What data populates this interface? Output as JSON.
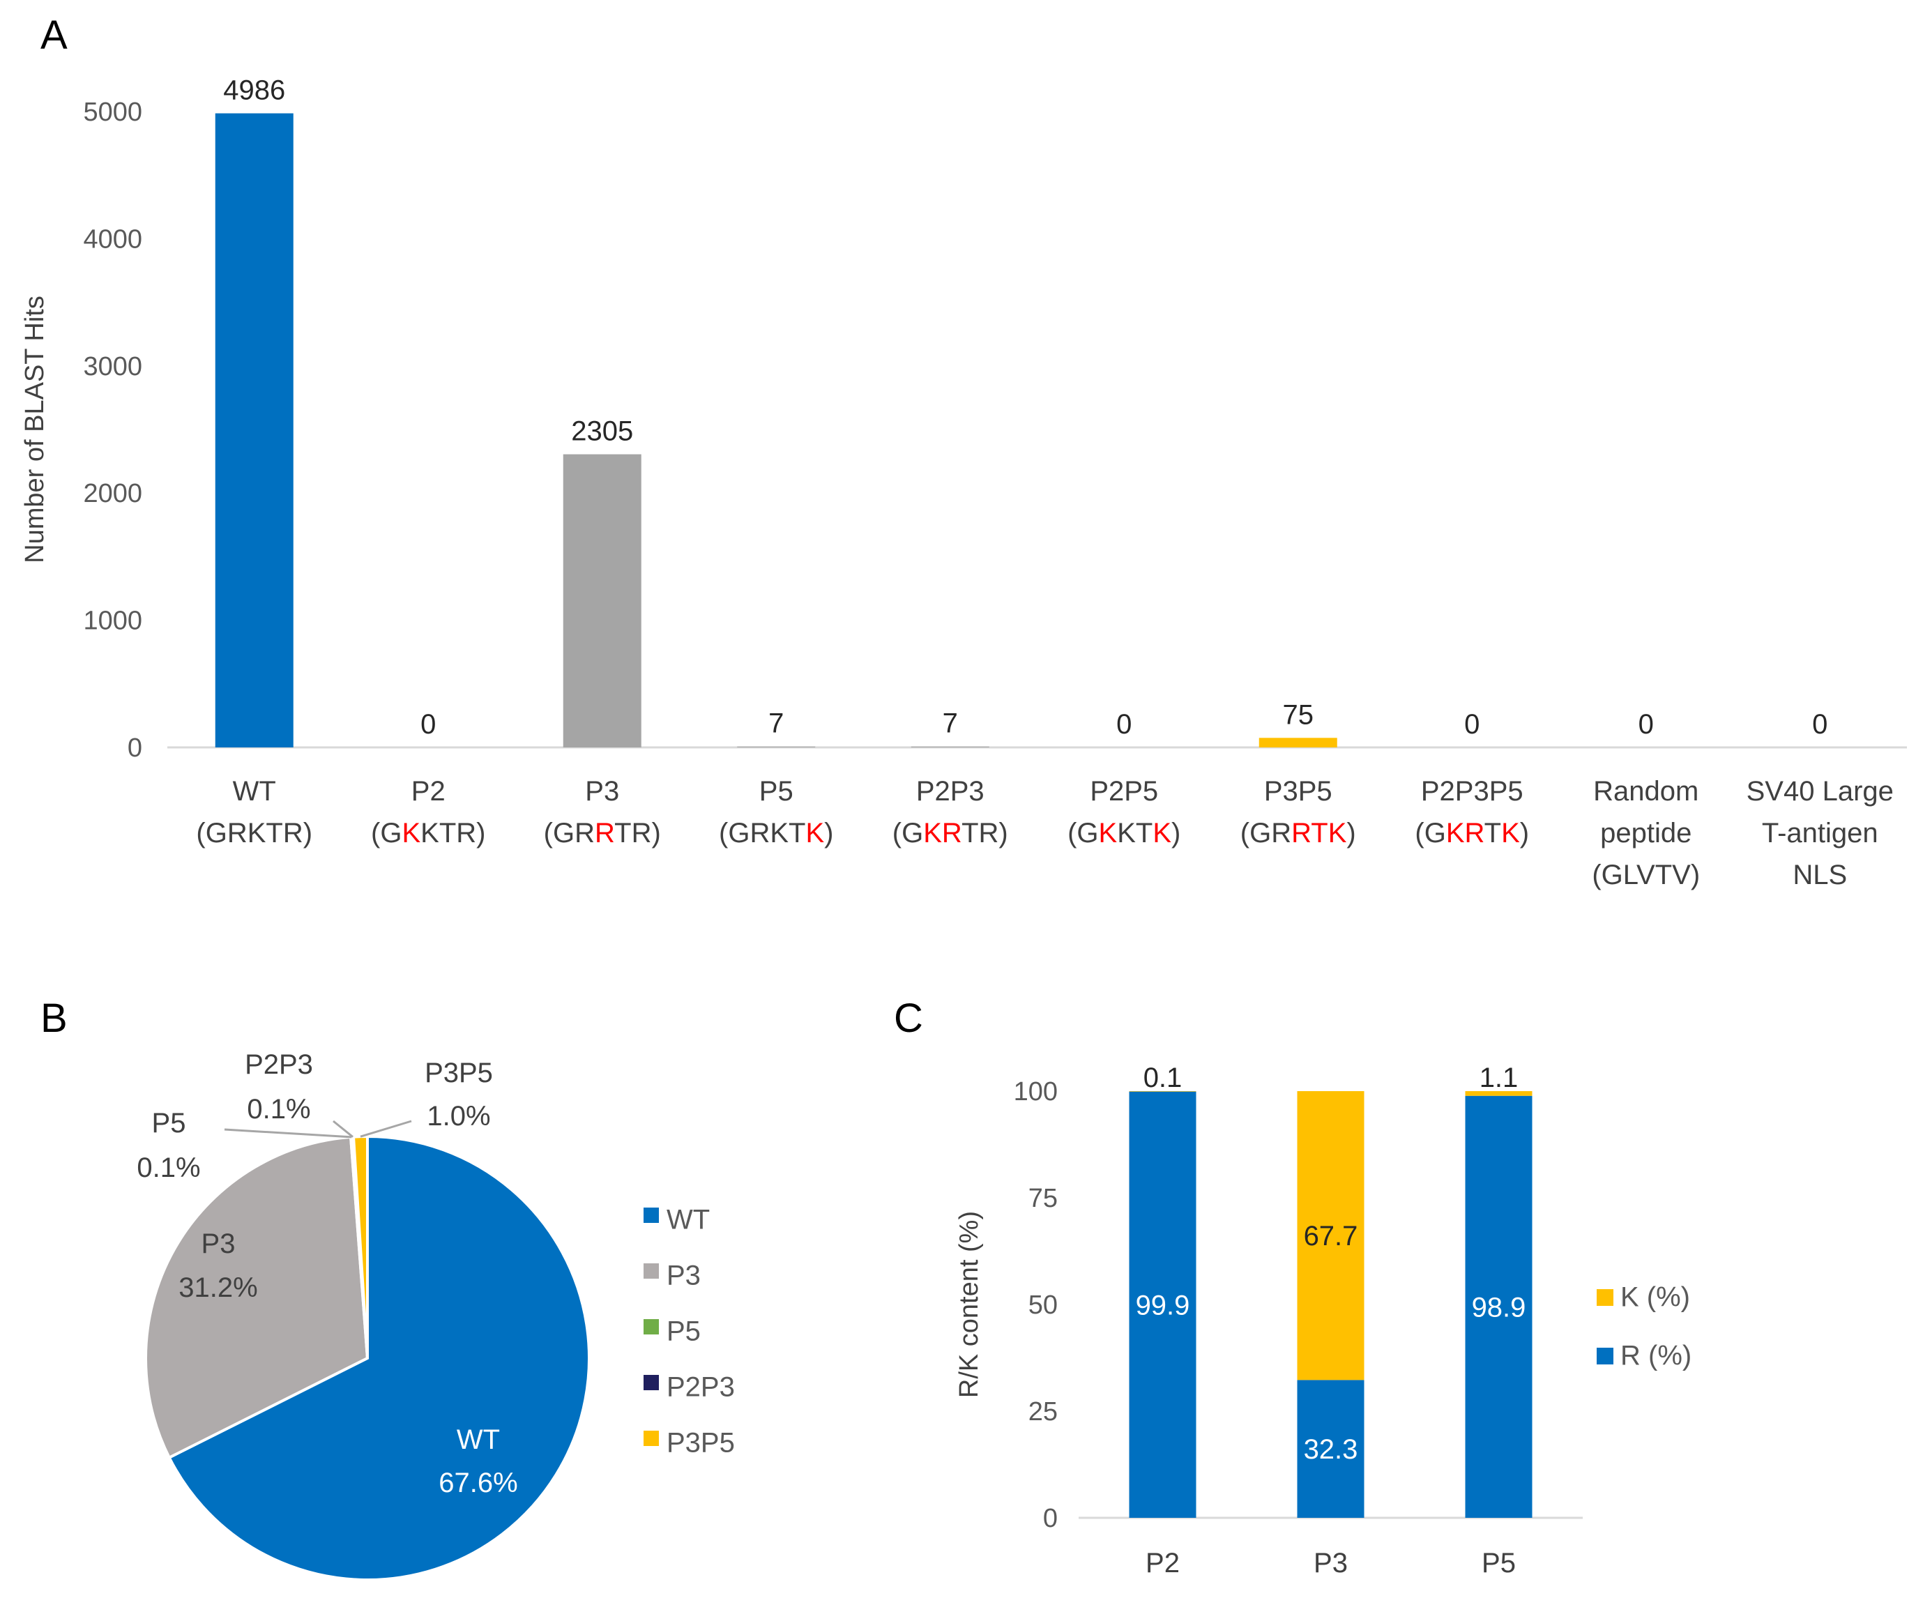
{
  "panels": {
    "a": "A",
    "b": "B",
    "c": "C"
  },
  "colors": {
    "blue": "#0070C0",
    "gray": "#A5A5A5",
    "pie_gray": "#AFABAB",
    "gold": "#FFC000",
    "green": "#70AD47",
    "navy": "#1F1F5E",
    "red": "#FF0000",
    "r_blue": "#0070C0"
  },
  "chart_data": [
    {
      "id": "A",
      "type": "bar",
      "ylabel": "Number of BLAST Hits",
      "ylim": [
        0,
        5000
      ],
      "yticks": [
        0,
        1000,
        2000,
        3000,
        4000,
        5000
      ],
      "categories": [
        {
          "lines": [
            [
              {
                "t": "WT"
              }
            ],
            [
              {
                "t": "(GRKTR)"
              }
            ]
          ]
        },
        {
          "lines": [
            [
              {
                "t": "P2"
              }
            ],
            [
              {
                "t": "(G"
              },
              {
                "t": "K",
                "red": true
              },
              {
                "t": "KTR)"
              }
            ]
          ]
        },
        {
          "lines": [
            [
              {
                "t": "P3"
              }
            ],
            [
              {
                "t": "(GR"
              },
              {
                "t": "R",
                "red": true
              },
              {
                "t": "TR)"
              }
            ]
          ]
        },
        {
          "lines": [
            [
              {
                "t": "P5"
              }
            ],
            [
              {
                "t": "(GRKT"
              },
              {
                "t": "K",
                "red": true
              },
              {
                "t": ")"
              }
            ]
          ]
        },
        {
          "lines": [
            [
              {
                "t": "P2P3"
              }
            ],
            [
              {
                "t": "(G"
              },
              {
                "t": "KR",
                "red": true
              },
              {
                "t": "TR)"
              }
            ]
          ]
        },
        {
          "lines": [
            [
              {
                "t": "P2P5"
              }
            ],
            [
              {
                "t": "(G"
              },
              {
                "t": "K",
                "red": true
              },
              {
                "t": "KT"
              },
              {
                "t": "K",
                "red": true
              },
              {
                "t": ")"
              }
            ]
          ]
        },
        {
          "lines": [
            [
              {
                "t": "P3P5"
              }
            ],
            [
              {
                "t": "(GR"
              },
              {
                "t": "RTK",
                "red": true
              },
              {
                "t": ")"
              }
            ]
          ]
        },
        {
          "lines": [
            [
              {
                "t": "P2P3P5"
              }
            ],
            [
              {
                "t": "(G"
              },
              {
                "t": "KR",
                "red": true
              },
              {
                "t": "T"
              },
              {
                "t": "K",
                "red": true
              },
              {
                "t": ")"
              }
            ]
          ]
        },
        {
          "lines": [
            [
              {
                "t": "Random"
              }
            ],
            [
              {
                "t": "peptide"
              }
            ],
            [
              {
                "t": "(GLVTV)"
              }
            ]
          ]
        },
        {
          "lines": [
            [
              {
                "t": "SV40 Large"
              }
            ],
            [
              {
                "t": "T-antigen"
              }
            ],
            [
              {
                "t": "NLS"
              }
            ]
          ]
        }
      ],
      "values": [
        4986,
        0,
        2305,
        7,
        7,
        0,
        75,
        0,
        0,
        0
      ],
      "bar_colors": [
        "#0070C0",
        "#0070C0",
        "#A5A5A5",
        "#A5A5A5",
        "#A5A5A5",
        "#A5A5A5",
        "#FFC000",
        "#FFC000",
        "#FFC000",
        "#FFC000"
      ],
      "data_labels": [
        "4986",
        "0",
        "2305",
        "7",
        "7",
        "0",
        "75",
        "0",
        "0",
        "0"
      ]
    },
    {
      "id": "B",
      "type": "pie",
      "slices": [
        {
          "name": "WT",
          "value": 67.6,
          "label": "67.6%",
          "color": "#0070C0"
        },
        {
          "name": "P3",
          "value": 31.2,
          "label": "31.2%",
          "color": "#AFABAB"
        },
        {
          "name": "P5",
          "value": 0.1,
          "label": "0.1%",
          "color": "#70AD47"
        },
        {
          "name": "P2P3",
          "value": 0.1,
          "label": "0.1%",
          "color": "#1F1F5E"
        },
        {
          "name": "P3P5",
          "value": 1.0,
          "label": "1.0%",
          "color": "#FFC000"
        }
      ],
      "legend": [
        "WT",
        "P3",
        "P5",
        "P2P3",
        "P3P5"
      ],
      "legend_position": "right"
    },
    {
      "id": "C",
      "type": "bar",
      "stacked": true,
      "ylabel": "R/K content (%)",
      "ylim": [
        0,
        100
      ],
      "yticks": [
        0,
        25,
        50,
        75,
        100
      ],
      "categories": [
        "P2",
        "P3",
        "P5"
      ],
      "series": [
        {
          "name": "R (%)",
          "values": [
            99.9,
            32.3,
            98.9
          ],
          "labels": [
            "99.9",
            "32.3",
            "98.9"
          ],
          "color": "#0070C0"
        },
        {
          "name": "K (%)",
          "values": [
            0.1,
            67.7,
            1.1
          ],
          "labels": [
            "0.1",
            "67.7",
            "1.1"
          ],
          "color": "#FFC000"
        }
      ],
      "legend": [
        "K (%)",
        "R (%)"
      ],
      "legend_position": "right"
    }
  ]
}
